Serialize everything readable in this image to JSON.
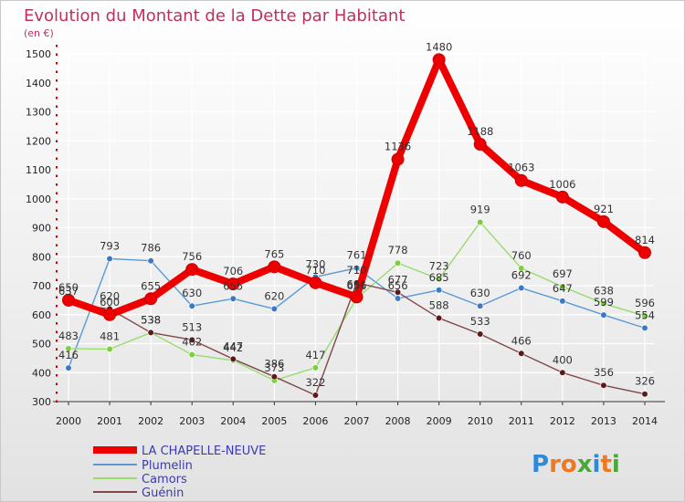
{
  "colors": {
    "title": "#c0305a",
    "background_top": "#ffffff",
    "background_bottom": "#e2e2e2",
    "grid": "#ffffff",
    "axis_marks": "#cc0000"
  },
  "logo": {
    "text": "Proxiti",
    "letters": [
      "P",
      "r",
      "o",
      "x",
      "i",
      "t",
      "i"
    ],
    "letter_colors": [
      "#2e8ad8",
      "#f07820",
      "#f07820",
      "#4aa83a",
      "#2e8ad8",
      "#f07820",
      "#4aa83a"
    ]
  },
  "chart_data": {
    "type": "line",
    "title": "Evolution du Montant de la Dette par Habitant",
    "subtitle": "(en €)",
    "xlabel": "",
    "ylabel": "",
    "x": [
      2000,
      2001,
      2002,
      2003,
      2004,
      2005,
      2006,
      2007,
      2008,
      2009,
      2010,
      2011,
      2012,
      2013,
      2014
    ],
    "yticks": [
      300,
      400,
      500,
      600,
      700,
      800,
      900,
      1000,
      1100,
      1200,
      1300,
      1400,
      1500
    ],
    "ylim": [
      300,
      1500
    ],
    "grid": true,
    "legend_position": "bottom-left",
    "series": [
      {
        "name": "Plumelin",
        "color": "#5a9ad2",
        "marker": "#3a78c8",
        "width": 1.4,
        "values": [
          416,
          793,
          786,
          630,
          655,
          620,
          730,
          761,
          656,
          685,
          630,
          692,
          647,
          599,
          554
        ],
        "labels": [
          "416",
          "793",
          "786",
          "630",
          "655",
          "620",
          "730",
          "761",
          "656",
          "685",
          "630",
          "692",
          "647",
          "599",
          "554"
        ]
      },
      {
        "name": "Camors",
        "color": "#98dc6e",
        "marker": "#7ccf3a",
        "width": 1.4,
        "values": [
          483,
          481,
          538,
          462,
          442,
          373,
          417,
          656,
          778,
          723,
          919,
          760,
          697,
          638,
          596
        ],
        "labels": [
          "483",
          "481",
          "538",
          "462",
          "442",
          "373",
          "417",
          "656",
          "778",
          "723",
          "919",
          "760",
          "697",
          "638",
          "596"
        ]
      },
      {
        "name": "Guénin",
        "color": "#804848",
        "marker": "#5a1a1a",
        "width": 1.4,
        "values": [
          637,
          620,
          538,
          513,
          447,
          386,
          322,
          710,
          677,
          588,
          533,
          466,
          400,
          356,
          326
        ],
        "labels": [
          "637",
          "620",
          "538",
          "513",
          "447",
          "386",
          "322",
          "710",
          "677",
          "588",
          "533",
          "466",
          "400",
          "356",
          "326"
        ]
      },
      {
        "name": "LA CHAPELLE-NEUVE",
        "color": "#ee0000",
        "marker": "#ee0000",
        "width": 8,
        "values": [
          650,
          600,
          655,
          756,
          706,
          765,
          710,
          661,
          1136,
          1480,
          1188,
          1063,
          1006,
          921,
          814
        ],
        "labels": [
          "650",
          "600",
          "655",
          "756",
          "706",
          "765",
          "710",
          "661",
          "1136",
          "1480",
          "1188",
          "1063",
          "1006",
          "921",
          "814"
        ]
      }
    ],
    "legend": [
      "LA CHAPELLE-NEUVE",
      "Plumelin",
      "Camors",
      "Guénin"
    ]
  }
}
